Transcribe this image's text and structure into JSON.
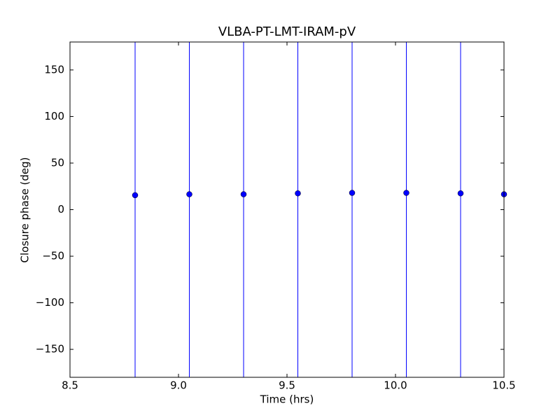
{
  "chart_data": {
    "type": "errorbar",
    "title": "VLBA-PT-LMT-IRAM-pV",
    "xlabel": "Time (hrs)",
    "ylabel": "Closure phase (deg)",
    "x": [
      8.8,
      9.05,
      9.3,
      9.55,
      9.8,
      10.05,
      10.3,
      10.5
    ],
    "series": [
      {
        "color": "#0000ff",
        "values": [
          15.5,
          16.5,
          16.5,
          17.5,
          18,
          18,
          17.5,
          16.5
        ],
        "errors": [
          200,
          200,
          200,
          200,
          200,
          200,
          200,
          200
        ]
      }
    ],
    "xlim": [
      8.5,
      10.5
    ],
    "xticks": [
      8.5,
      {
        "value": 9.0,
        "label": "9.0"
      },
      9.5,
      {
        "value": 10.0,
        "label": "10.0"
      },
      10.5
    ],
    "ylim": [
      -180,
      180
    ],
    "yticks": [
      {
        "value": -150,
        "label": "−150"
      },
      {
        "value": -100,
        "label": "−100"
      },
      {
        "value": -50,
        "label": "−50"
      },
      0,
      50,
      100,
      150
    ]
  }
}
